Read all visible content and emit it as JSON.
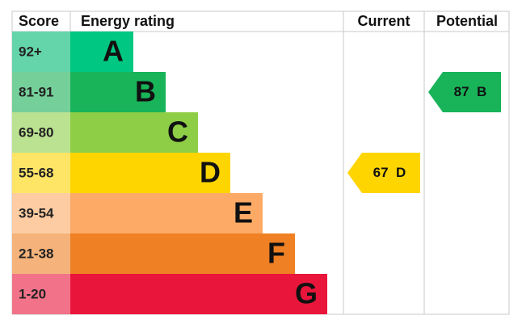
{
  "header": {
    "score": "Score",
    "rating": "Energy rating",
    "current": "Current",
    "potential": "Potential"
  },
  "bands": [
    {
      "range": "92+",
      "rating": "A",
      "color": "#00c781",
      "light": "#64d5ab"
    },
    {
      "range": "81-91",
      "rating": "B",
      "color": "#19b459",
      "light": "#75cf99"
    },
    {
      "range": "69-80",
      "rating": "C",
      "color": "#8dce46",
      "light": "#bbe290"
    },
    {
      "range": "55-68",
      "rating": "D",
      "color": "#ffd500",
      "light": "#ffe566"
    },
    {
      "range": "39-54",
      "rating": "E",
      "color": "#fcaa65",
      "light": "#fdcca2"
    },
    {
      "range": "21-38",
      "rating": "F",
      "color": "#ef8023",
      "light": "#f5b37b"
    },
    {
      "range": "1-20",
      "rating": "G",
      "color": "#e9153b",
      "light": "#f27389"
    }
  ],
  "current": {
    "score": 67,
    "rating": "D"
  },
  "potential": {
    "score": 87,
    "rating": "B"
  }
}
